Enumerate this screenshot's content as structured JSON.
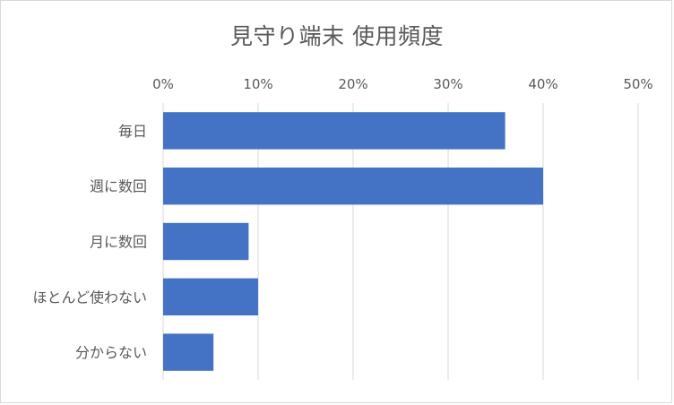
{
  "chart_data": {
    "type": "bar",
    "orientation": "horizontal",
    "title": "見守り端末 使用頻度",
    "categories": [
      "毎日",
      "週に数回",
      "月に数回",
      "ほとんど使わない",
      "分からない"
    ],
    "values": [
      36,
      40,
      9,
      10,
      5.3
    ],
    "value_unit": "%",
    "xlim": [
      0,
      50
    ],
    "x_ticks": [
      "0%",
      "10%",
      "20%",
      "30%",
      "40%",
      "50%"
    ],
    "x_tick_values": [
      0,
      10,
      20,
      30,
      40,
      50
    ],
    "x_axis_position": "top",
    "grid": true,
    "legend": "none",
    "bar_color": "#4472c4",
    "grid_color": "#d9d9d9",
    "text_color": "#595959"
  }
}
